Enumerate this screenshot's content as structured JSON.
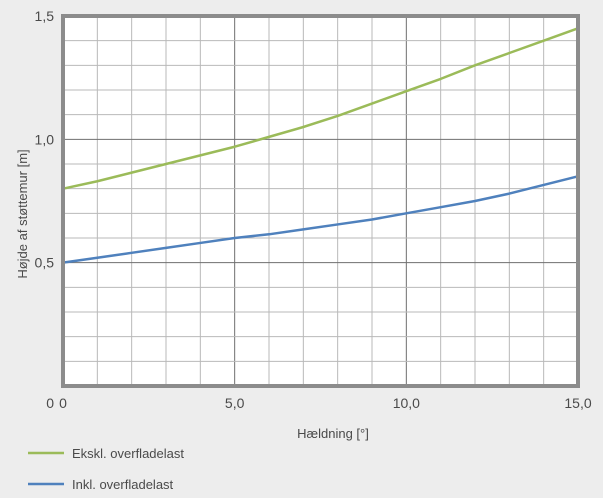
{
  "chart_data": {
    "type": "line",
    "title": "",
    "xlabel": "Hældning [°]",
    "ylabel": "Højde af støttemur [m]",
    "xlim": [
      0,
      15
    ],
    "ylim": [
      0,
      1.5
    ],
    "x_ticks": [
      {
        "value": 0,
        "label": "0"
      },
      {
        "value": 5,
        "label": "5,0"
      },
      {
        "value": 10,
        "label": "10,0"
      },
      {
        "value": 15,
        "label": "15,0"
      }
    ],
    "y_ticks": [
      {
        "value": 0.5,
        "label": "0,5"
      },
      {
        "value": 1.0,
        "label": "1,0"
      },
      {
        "value": 1.5,
        "label": "1,5"
      }
    ],
    "grid": true,
    "legend_position": "bottom-left",
    "series": [
      {
        "name": "Ekskl. overfladelast",
        "color": "#9bbb59",
        "x": [
          0,
          1,
          2,
          3,
          4,
          5,
          6,
          7,
          8,
          9,
          10,
          11,
          12,
          13,
          14,
          15
        ],
        "y": [
          0.8,
          0.83,
          0.865,
          0.9,
          0.935,
          0.97,
          1.01,
          1.05,
          1.095,
          1.145,
          1.195,
          1.245,
          1.3,
          1.35,
          1.4,
          1.45
        ]
      },
      {
        "name": "Inkl. overfladelast",
        "color": "#4f81bd",
        "x": [
          0,
          1,
          2,
          3,
          4,
          5,
          6,
          7,
          8,
          9,
          10,
          11,
          12,
          13,
          14,
          15
        ],
        "y": [
          0.5,
          0.52,
          0.54,
          0.56,
          0.58,
          0.6,
          0.615,
          0.635,
          0.655,
          0.675,
          0.7,
          0.725,
          0.75,
          0.78,
          0.815,
          0.85
        ]
      }
    ]
  }
}
